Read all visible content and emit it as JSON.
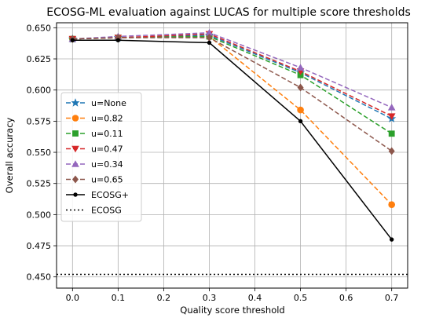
{
  "chart_data": {
    "type": "line",
    "title": "ECOSG-ML evaluation against LUCAS for multiple score thresholds",
    "xlabel": "Quality score threshold",
    "ylabel": "Overall accuracy",
    "xlim": [
      -0.035,
      0.735
    ],
    "ylim": [
      0.441,
      0.654
    ],
    "grid": true,
    "legend_position": "center-left",
    "x": [
      0.0,
      0.1,
      0.3,
      0.5,
      0.7
    ],
    "x_ticks": [
      {
        "value": 0.0,
        "label": "0.0"
      },
      {
        "value": 0.1,
        "label": "0.1"
      },
      {
        "value": 0.2,
        "label": "0.2"
      },
      {
        "value": 0.3,
        "label": "0.3"
      },
      {
        "value": 0.4,
        "label": "0.4"
      },
      {
        "value": 0.5,
        "label": "0.5"
      },
      {
        "value": 0.6,
        "label": "0.6"
      },
      {
        "value": 0.7,
        "label": "0.7"
      }
    ],
    "y_ticks": [
      {
        "value": 0.45,
        "label": "0.450"
      },
      {
        "value": 0.475,
        "label": "0.475"
      },
      {
        "value": 0.5,
        "label": "0.500"
      },
      {
        "value": 0.525,
        "label": "0.525"
      },
      {
        "value": 0.55,
        "label": "0.550"
      },
      {
        "value": 0.575,
        "label": "0.575"
      },
      {
        "value": 0.6,
        "label": "0.600"
      },
      {
        "value": 0.625,
        "label": "0.625"
      },
      {
        "value": 0.65,
        "label": "0.650"
      }
    ],
    "series": [
      {
        "name": "u=None",
        "color": "#1f77b4",
        "marker": "star",
        "dash": "6,3",
        "values": [
          0.641,
          0.642,
          0.644,
          0.614,
          0.577
        ]
      },
      {
        "name": "u=0.82",
        "color": "#ff7f0e",
        "marker": "circle",
        "dash": "6,3",
        "values": [
          0.641,
          0.642,
          0.643,
          0.584,
          0.508
        ]
      },
      {
        "name": "u=0.11",
        "color": "#2ca02c",
        "marker": "square",
        "dash": "6,3",
        "values": [
          0.641,
          0.642,
          0.643,
          0.612,
          0.565
        ]
      },
      {
        "name": "u=0.47",
        "color": "#d62728",
        "marker": "triangle-down",
        "dash": "6,3",
        "values": [
          0.641,
          0.642,
          0.645,
          0.615,
          0.579
        ]
      },
      {
        "name": "u=0.34",
        "color": "#9467bd",
        "marker": "triangle-up",
        "dash": "6,3",
        "values": [
          0.641,
          0.643,
          0.646,
          0.618,
          0.586
        ]
      },
      {
        "name": "u=0.65",
        "color": "#8c564b",
        "marker": "diamond",
        "dash": "6,3",
        "values": [
          0.641,
          0.642,
          0.642,
          0.602,
          0.551
        ]
      },
      {
        "name": "ECOSG+",
        "color": "#000000",
        "marker": "dot",
        "dash": "",
        "values": [
          0.64,
          0.64,
          0.638,
          0.575,
          0.48
        ]
      },
      {
        "name": "ECOSG",
        "color": "#000000",
        "marker": "none",
        "dash": "2,3",
        "values": [
          0.452,
          0.452,
          0.452,
          0.452,
          0.452
        ]
      }
    ]
  }
}
